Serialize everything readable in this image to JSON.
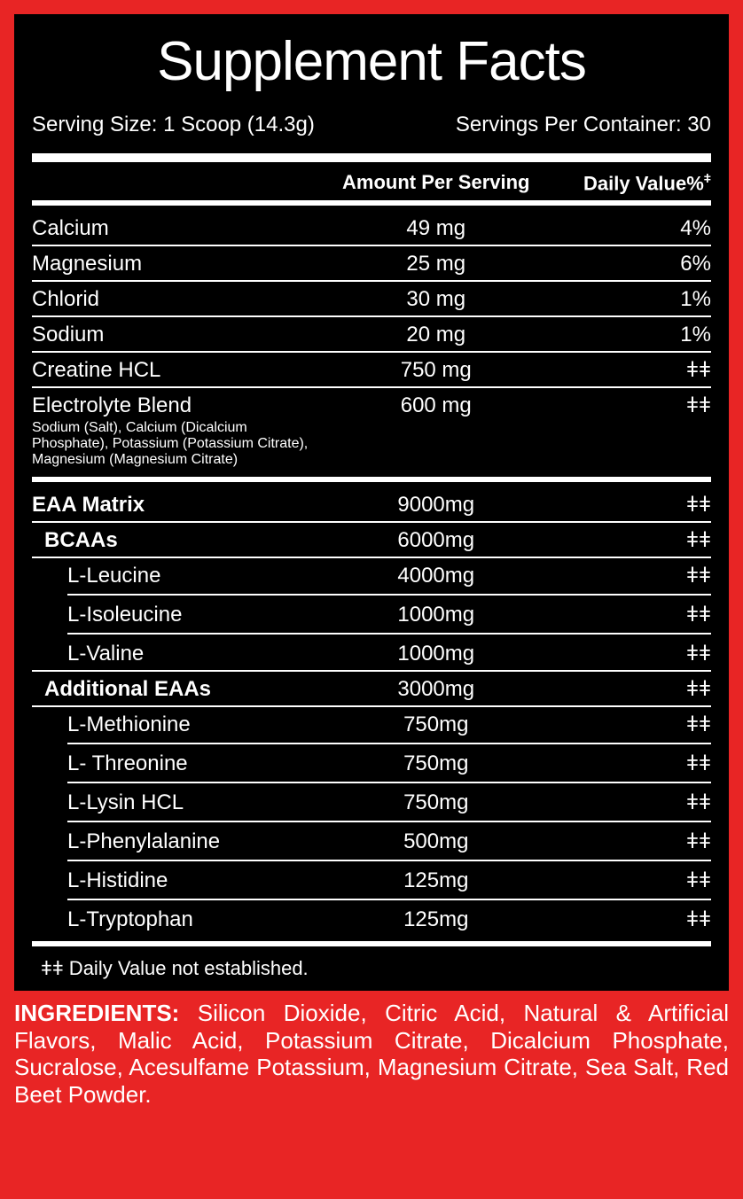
{
  "title": "Supplement Facts",
  "serving_size_label": "Serving Size: 1 Scoop (14.3g)",
  "servings_per_container": "Servings Per Container: 30",
  "header_amount": "Amount Per Serving",
  "header_dv": "Daily Value%",
  "header_dv_sup": "ǂ",
  "minerals": [
    {
      "name": "Calcium",
      "amount": "49 mg",
      "dv": "4%"
    },
    {
      "name": "Magnesium",
      "amount": "25 mg",
      "dv": "6%"
    },
    {
      "name": "Chlorid",
      "amount": "30 mg",
      "dv": "1%"
    },
    {
      "name": "Sodium",
      "amount": "20 mg",
      "dv": "1%"
    }
  ],
  "creatine": {
    "name": "Creatine HCL",
    "amount": "750 mg",
    "dv": "ǂǂ"
  },
  "electrolyte": {
    "name": "Electrolyte Blend",
    "sub": "Sodium (Salt), Calcium (Dicalcium Phosphate), Potassium (Potassium  Citrate), Magnesium (Magnesium Citrate)",
    "amount": "600 mg",
    "dv": "ǂǂ"
  },
  "eaa_matrix": {
    "name": "EAA Matrix",
    "amount": "9000mg",
    "dv": "ǂǂ"
  },
  "bcaas": {
    "header": {
      "name": "BCAAs",
      "amount": "6000mg",
      "dv": "ǂǂ"
    },
    "items": [
      {
        "name": "L-Leucine",
        "amount": "4000mg",
        "dv": "ǂǂ"
      },
      {
        "name": "L-Isoleucine",
        "amount": "1000mg",
        "dv": "ǂǂ"
      },
      {
        "name": "L-Valine",
        "amount": "1000mg",
        "dv": "ǂǂ"
      }
    ]
  },
  "additional_eaas": {
    "header": {
      "name": "Additional EAAs",
      "amount": "3000mg",
      "dv": "ǂǂ"
    },
    "items": [
      {
        "name": "L-Methionine",
        "amount": "750mg",
        "dv": "ǂǂ"
      },
      {
        "name": "L- Threonine",
        "amount": "750mg",
        "dv": "ǂǂ"
      },
      {
        "name": "L-Lysin HCL",
        "amount": "750mg",
        "dv": "ǂǂ"
      },
      {
        "name": "L-Phenylalanine",
        "amount": "500mg",
        "dv": "ǂǂ"
      },
      {
        "name": "L-Histidine",
        "amount": "125mg",
        "dv": "ǂǂ"
      },
      {
        "name": "L-Tryptophan",
        "amount": "125mg",
        "dv": "ǂǂ"
      }
    ]
  },
  "footnote": "ǂǂ Daily Value not established.",
  "ingredients_label": "INGREDIENTS:",
  "ingredients_text": " Silicon Dioxide, Citric Acid, Natural & Artificial Flavors, Malic Acid, Potassium Citrate, Dicalcium Phosphate, Sucralose, Acesulfame Potassium, Magnesium Citrate, Sea Salt, Red Beet Powder.",
  "colors": {
    "background": "#e82525",
    "panel": "#000000",
    "text": "#ffffff"
  }
}
